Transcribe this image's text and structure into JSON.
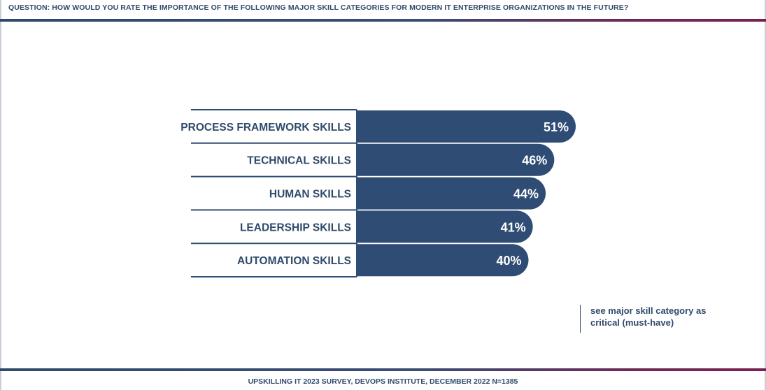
{
  "header": {
    "question": "QUESTION: HOW WOULD YOU RATE THE IMPORTANCE OF THE FOLLOWING MAJOR SKILL CATEGORIES FOR MODERN IT ENTERPRISE ORGANIZATIONS IN THE FUTURE?"
  },
  "note": {
    "line1": "see major skill category as",
    "line2": "critical (must-have)"
  },
  "footer": {
    "source": "UPSKILLING IT 2023 SURVEY, DEVOPS INSTITUTE, DECEMBER 2022 N=1385"
  },
  "colors": {
    "bar": "#2f4c74",
    "text": "#2f4a6b",
    "accent": "#7d1f52"
  },
  "chart_data": {
    "type": "bar",
    "orientation": "horizontal",
    "categories": [
      "PROCESS FRAMEWORK SKILLS",
      "TECHNICAL SKILLS",
      "HUMAN SKILLS",
      "LEADERSHIP SKILLS",
      "AUTOMATION SKILLS"
    ],
    "values": [
      51,
      46,
      44,
      41,
      40
    ],
    "value_labels": [
      "51%",
      "46%",
      "44%",
      "41%",
      "40%"
    ],
    "unit": "%",
    "xlim": [
      0,
      100
    ],
    "grid": false
  }
}
